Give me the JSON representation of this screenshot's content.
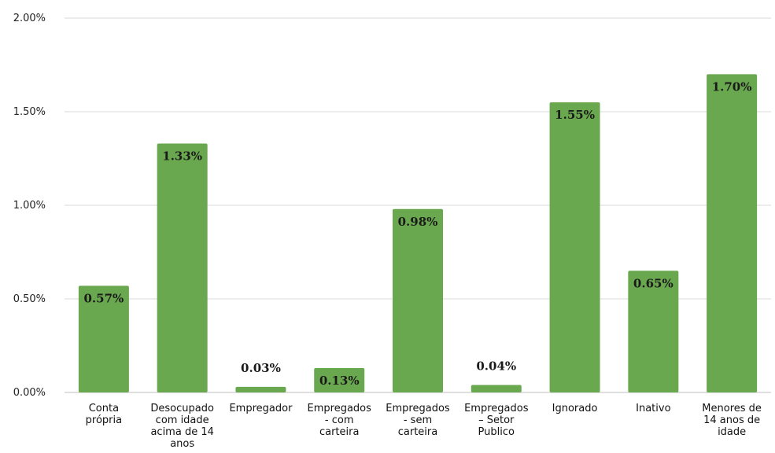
{
  "chart_data": {
    "type": "bar",
    "title": "",
    "xlabel": "",
    "ylabel": "",
    "ylim": [
      0,
      2.0
    ],
    "y_ticks": [
      "0.00%",
      "0.50%",
      "1.00%",
      "1.50%",
      "2.00%"
    ],
    "y_tick_values": [
      0,
      0.5,
      1.0,
      1.5,
      2.0
    ],
    "grid": true,
    "legend": "none",
    "bar_color": "#6aa84f",
    "categories": [
      [
        "Conta",
        "própria"
      ],
      [
        "Desocupado",
        "com idade",
        "acima de 14",
        "anos"
      ],
      [
        "Empregador"
      ],
      [
        "Empregados",
        "- com",
        "carteira"
      ],
      [
        "Empregados",
        "- sem",
        "carteira"
      ],
      [
        "Empregados",
        "– Setor",
        "Publico"
      ],
      [
        "Ignorado"
      ],
      [
        "Inativo"
      ],
      [
        "Menores de",
        "14 anos de",
        "idade"
      ]
    ],
    "values": [
      0.57,
      1.33,
      0.03,
      0.13,
      0.98,
      0.04,
      1.55,
      0.65,
      1.7
    ],
    "data_labels": [
      "0.57%",
      "1.33%",
      "0.03%",
      "0.13%",
      "0.98%",
      "0.04%",
      "1.55%",
      "0.65%",
      "1.70%"
    ]
  }
}
